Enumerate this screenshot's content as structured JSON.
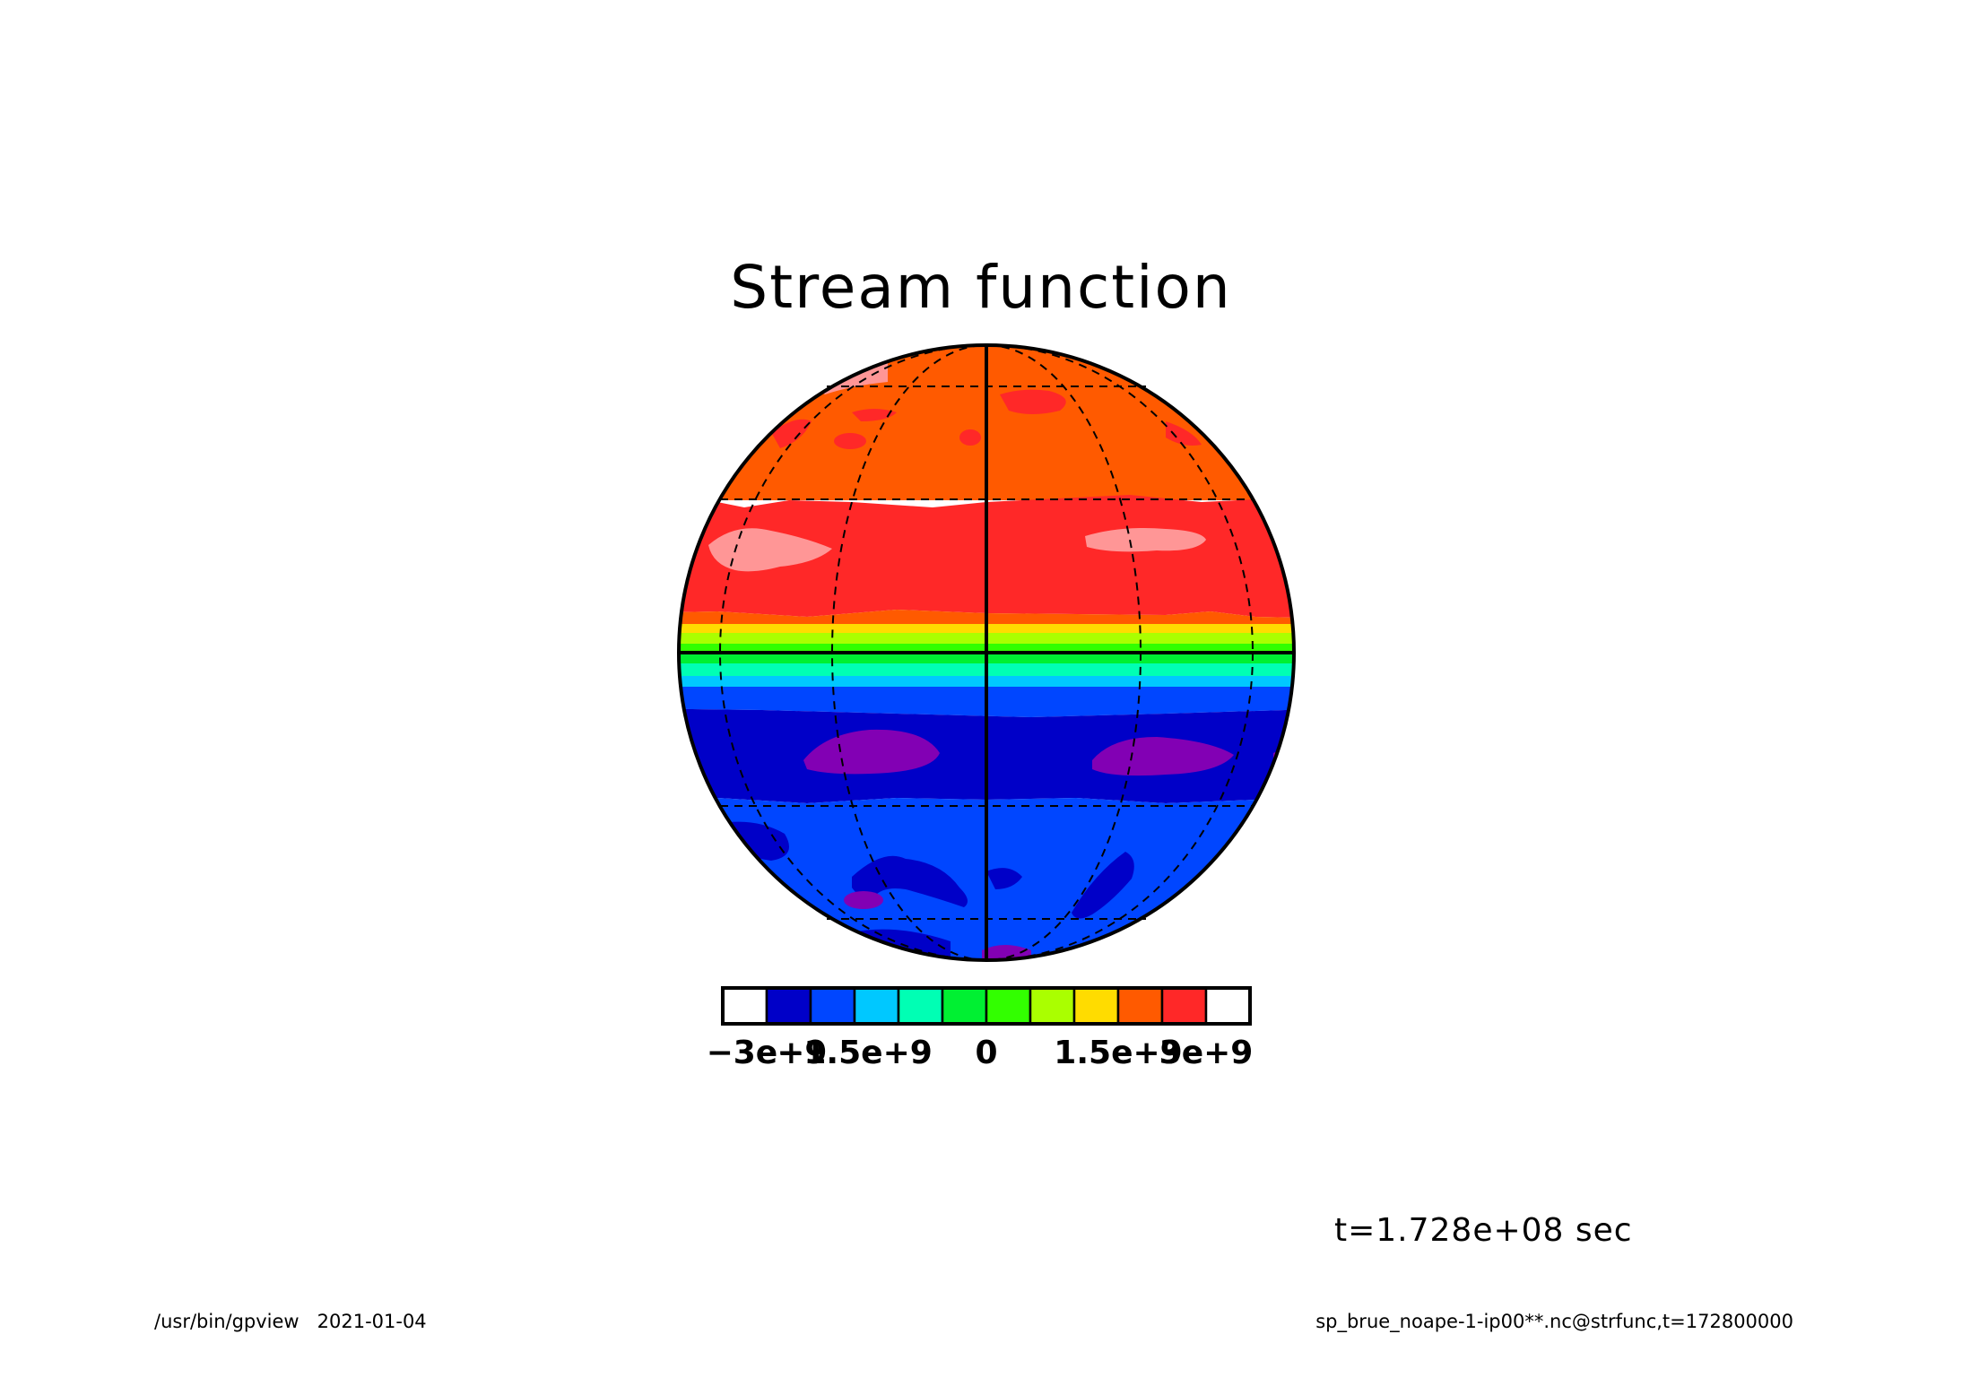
{
  "title": "Stream function",
  "colorbar": {
    "colors": [
      "#ffffff",
      "#0000c8",
      "#0046ff",
      "#00c8ff",
      "#00ffb4",
      "#00f032",
      "#32ff00",
      "#aaff00",
      "#ffdc00",
      "#ff5a00",
      "#ff2828",
      "#ffffff"
    ],
    "tick_labels": [
      "−3e+9",
      "−1.5e+9",
      "0",
      "1.5e+9",
      "3e+9"
    ]
  },
  "time_label": "t=1.728e+08 sec",
  "footer": {
    "left": "/usr/bin/gpview   2021-01-04",
    "right": "sp_brue_noape-1-ip00**.nc@strfunc,t=172800000"
  },
  "map": {
    "projection": "orthographic",
    "grid_parallels_deg": [
      -60,
      -30,
      30,
      60
    ],
    "grid_meridians_deg": [
      -90,
      -60,
      -30,
      30,
      60,
      90
    ],
    "field_colors": {
      "pink": "#ff9696",
      "red": "#ff2828",
      "orange": "#ff5a00",
      "yellow": "#ffdc00",
      "yellowgreen": "#aaff00",
      "green": "#32ff00",
      "green2": "#00f032",
      "teal": "#00ffb4",
      "cyan": "#00c8ff",
      "lightblue": "#0046ff",
      "darkblue": "#0000c8",
      "purple": "#8200b4"
    }
  }
}
